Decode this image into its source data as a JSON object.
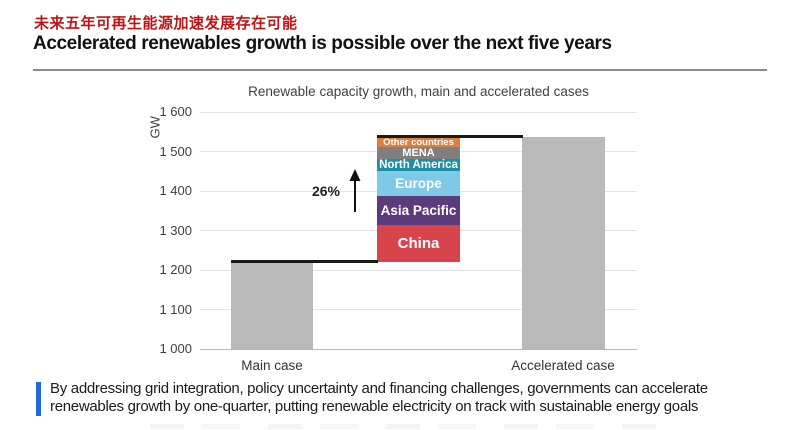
{
  "page": {
    "subtitle_zh": "未来五年可再生能源加速发展存在可能",
    "title": "Accelerated renewables growth is possible over the next five years"
  },
  "footnote": {
    "line1": "By addressing grid integration, policy uncertainty and financing challenges, governments can accelerate",
    "line2": "renewables growth by one-quarter, putting renewable electricity on track with sustainable energy goals"
  },
  "colors": {
    "heading_red": "#c01414",
    "accent_blue": "#1e6bd6",
    "bar_gray": "#b9b9b9",
    "step_line_black": "#1a1a1a",
    "gridline_gray": "#e4e4e4"
  },
  "chart_data": {
    "type": "bar",
    "title": "Renewable capacity growth, main and accelerated cases",
    "ylabel": "GW",
    "ylim": [
      1000,
      1600
    ],
    "grid": true,
    "legend_position": "none",
    "ytick_values": [
      1000,
      1100,
      1200,
      1300,
      1400,
      1500,
      1600
    ],
    "ytick_labels": [
      "1 000",
      "1 100",
      "1 200",
      "1 300",
      "1 400",
      "1 500",
      "1 600"
    ],
    "categories": [
      "Main case",
      "Accelerated case"
    ],
    "main_case_total_gw": 1220,
    "accelerated_case_total_gw": 1537,
    "growth_label": "26%",
    "bridge_segments_bottom_to_top": [
      {
        "name": "China",
        "value_gw": 93,
        "color": "#d8444c"
      },
      {
        "name": "Asia Pacific",
        "value_gw": 75,
        "color": "#5c3b7d"
      },
      {
        "name": "Europe",
        "value_gw": 62,
        "color": "#7ec9e8"
      },
      {
        "name": "North America",
        "value_gw": 32,
        "color": "#1b8fa3"
      },
      {
        "name": "MENA",
        "value_gw": 29,
        "color": "#7f7f7f"
      },
      {
        "name": "Other countries",
        "value_gw": 26,
        "color": "#df7f3e"
      }
    ]
  }
}
